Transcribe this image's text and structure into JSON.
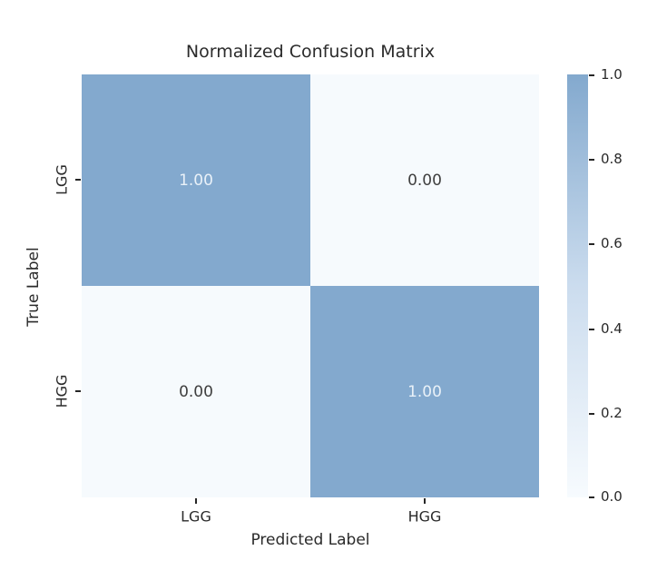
{
  "chart_data": {
    "type": "heatmap",
    "title": "Normalized Confusion Matrix",
    "xlabel": "Predicted Label",
    "ylabel": "True Label",
    "x_tick_labels": [
      "LGG",
      "HGG"
    ],
    "y_tick_labels": [
      "LGG",
      "HGG"
    ],
    "matrix": [
      [
        1.0,
        0.0
      ],
      [
        0.0,
        1.0
      ]
    ],
    "annotation_precision": 2,
    "colormap": "Blues",
    "grid": false,
    "legend": "none",
    "colorbar": {
      "position": "right",
      "min": 0.0,
      "max": 1.0,
      "tick_labels": [
        "1.0",
        "0.8",
        "0.6",
        "0.4",
        "0.2",
        "0.0"
      ]
    },
    "colors": {
      "cell_high": "#83a9ce",
      "cell_low": "#f6fafd",
      "colorbar_high": "#83a9ce",
      "colorbar_mid": "#cbdcee",
      "colorbar_low": "#f7fbfe",
      "annotation_on_high": "#e9f1f8",
      "annotation_on_low": "#3f3f3f",
      "text": "#2a2a2a",
      "background": "#ffffff"
    }
  }
}
